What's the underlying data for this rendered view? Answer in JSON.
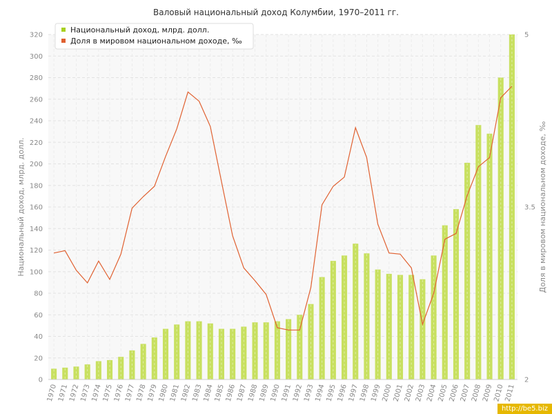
{
  "chart_data": {
    "type": "bar",
    "title": "Валовый национальный доход Колумбии, 1970–2011 гг.",
    "categories": [
      "1970",
      "1971",
      "1972",
      "1973",
      "1974",
      "1975",
      "1976",
      "1977",
      "1978",
      "1979",
      "1980",
      "1981",
      "1982",
      "1983",
      "1984",
      "1985",
      "1986",
      "1987",
      "1988",
      "1989",
      "1990",
      "1991",
      "1992",
      "1993",
      "1994",
      "1995",
      "1996",
      "1997",
      "1998",
      "1999",
      "2000",
      "2001",
      "2002",
      "2003",
      "2004",
      "2005",
      "2006",
      "2007",
      "2008",
      "2009",
      "2010",
      "2011"
    ],
    "series": [
      {
        "name": "Национальный доход, млрд. долл.",
        "type": "bar",
        "axis": "left",
        "color": "#c8e060",
        "values": [
          10,
          11,
          12,
          14,
          17,
          18,
          21,
          27,
          33,
          39,
          47,
          51,
          54,
          54,
          52,
          47,
          47,
          49,
          53,
          53,
          54,
          56,
          60,
          70,
          95,
          110,
          115,
          126,
          117,
          102,
          98,
          97,
          97,
          93,
          115,
          143,
          158,
          201,
          236,
          228,
          280,
          320
        ]
      },
      {
        "name": "Доля в мировом национальном доходе, ‰",
        "type": "line",
        "axis": "right",
        "color": "#e06030",
        "values": [
          3.1,
          3.12,
          2.95,
          2.84,
          3.03,
          2.87,
          3.09,
          3.49,
          3.59,
          3.68,
          3.94,
          4.18,
          4.5,
          4.42,
          4.2,
          3.72,
          3.25,
          2.97,
          2.86,
          2.74,
          2.45,
          2.43,
          2.43,
          2.8,
          3.52,
          3.68,
          3.76,
          4.19,
          3.93,
          3.35,
          3.1,
          3.09,
          2.97,
          2.48,
          2.75,
          3.22,
          3.27,
          3.6,
          3.85,
          3.93,
          4.45,
          4.55
        ]
      }
    ],
    "ylabel": "Национальный доход, млрд. долл.",
    "y2label": "Доля в мировом национальном доходе, ‰",
    "ylim": [
      0,
      320
    ],
    "y2lim": [
      2,
      5
    ],
    "yticks": [
      "0",
      "20",
      "40",
      "60",
      "80",
      "100",
      "120",
      "140",
      "160",
      "180",
      "200",
      "220",
      "240",
      "260",
      "280",
      "300",
      "320"
    ],
    "y2ticks": [
      "2",
      "3.5",
      "5"
    ],
    "grid": true,
    "legend_position": "top-left"
  },
  "watermark": "http://be5.biz"
}
